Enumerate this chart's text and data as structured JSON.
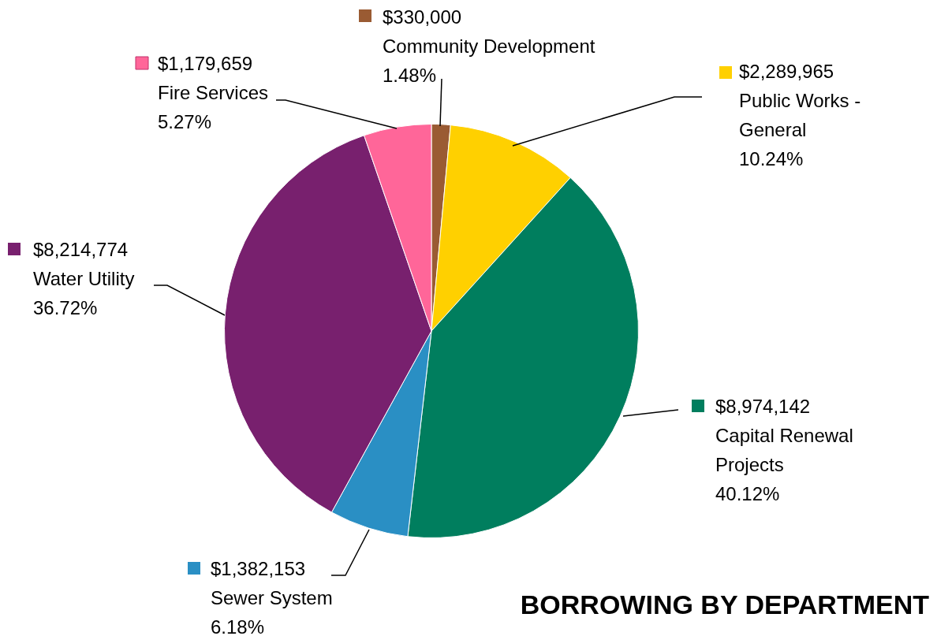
{
  "chart_data": {
    "type": "pie",
    "title": "BORROWING BY DEPARTMENT",
    "categories": [
      "Community Development",
      "Public Works - General",
      "Capital Renewal Projects",
      "Sewer System",
      "Water Utility",
      "Fire Services"
    ],
    "values": [
      330000,
      2289965,
      8974142,
      1382153,
      8214774,
      1179659
    ],
    "colors": [
      "#9a5b33",
      "#ffd000",
      "#007e5e",
      "#2a8fc4",
      "#78206e",
      "#ff6699"
    ],
    "value_labels": [
      "$330,000",
      "$2,289,965",
      "$8,974,142",
      "$1,382,153",
      "$8,214,774",
      "$1,179,659"
    ],
    "annotations": [
      {
        "text": "1.48%",
        "x": "Community Development"
      },
      {
        "text": "10.24%",
        "x": "Public Works - General"
      },
      {
        "text": "40.12%",
        "x": "Capital Renewal Projects"
      },
      {
        "text": "6.18%",
        "x": "Sewer System"
      },
      {
        "text": "36.72%",
        "x": "Water Utility"
      },
      {
        "text": "5.27%",
        "x": "Fire Services"
      }
    ],
    "legend": "right"
  }
}
